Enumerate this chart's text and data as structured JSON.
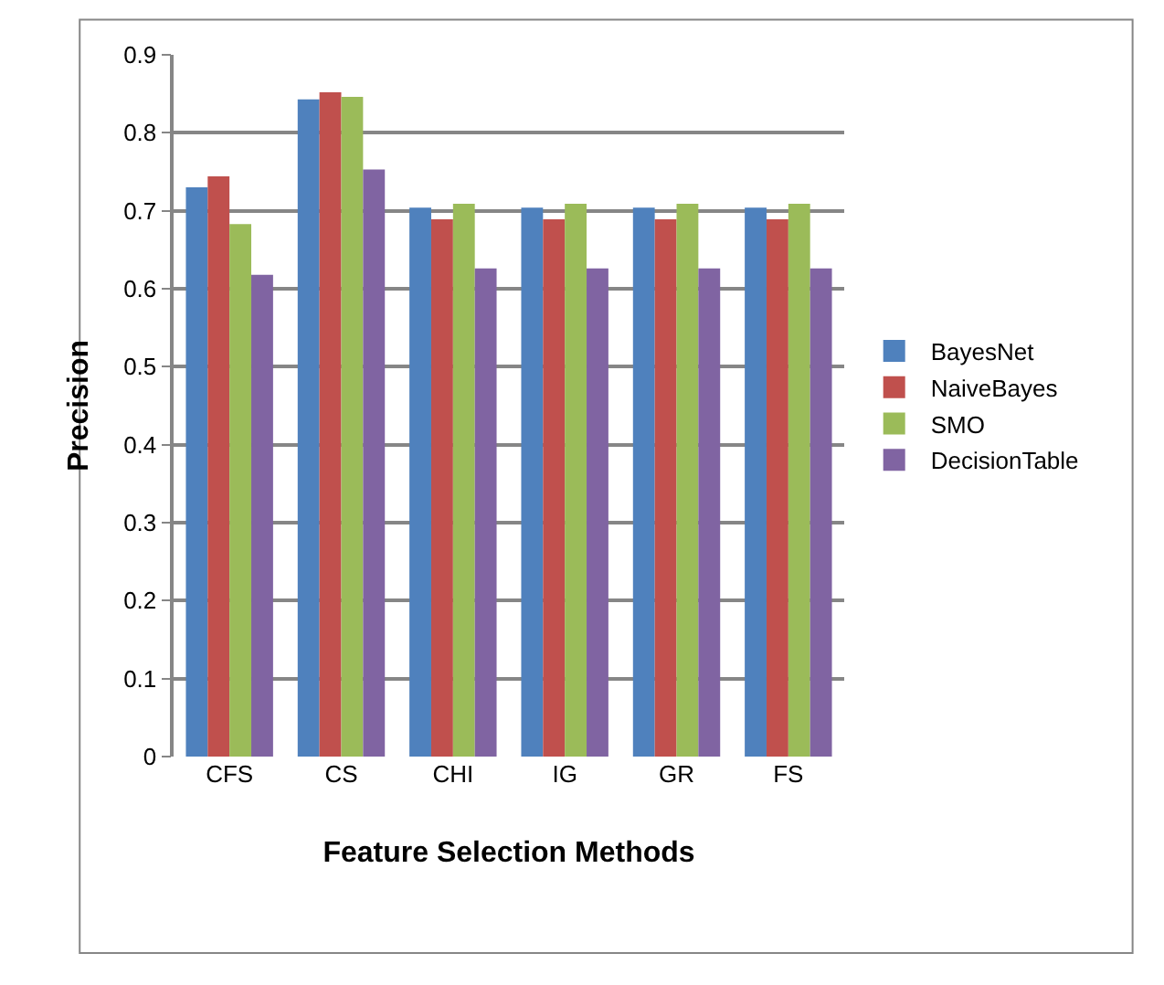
{
  "chart_data": {
    "type": "bar",
    "xlabel": "Feature Selection Methods",
    "ylabel": "Precision",
    "categories": [
      "CFS",
      "CS",
      "CHI",
      "IG",
      "GR",
      "FS"
    ],
    "series": [
      {
        "name": "BayesNet",
        "color": "#4f81bd",
        "values": [
          0.73,
          0.843,
          0.704,
          0.704,
          0.704,
          0.704
        ]
      },
      {
        "name": "NaiveBayes",
        "color": "#c0504d",
        "values": [
          0.744,
          0.852,
          0.689,
          0.689,
          0.689,
          0.689
        ]
      },
      {
        "name": "SMO",
        "color": "#9bbb59",
        "values": [
          0.683,
          0.846,
          0.709,
          0.709,
          0.709,
          0.709
        ]
      },
      {
        "name": "DecisionTable",
        "color": "#8064a2",
        "values": [
          0.618,
          0.753,
          0.626,
          0.626,
          0.626,
          0.626
        ]
      }
    ],
    "ylim": [
      0,
      0.9
    ],
    "yticks": [
      {
        "value": 0,
        "label": "0"
      },
      0.1,
      0.2,
      0.3,
      0.4,
      0.5,
      0.6,
      0.7,
      0.8,
      0.9
    ],
    "grid": "y",
    "legend": "right"
  }
}
